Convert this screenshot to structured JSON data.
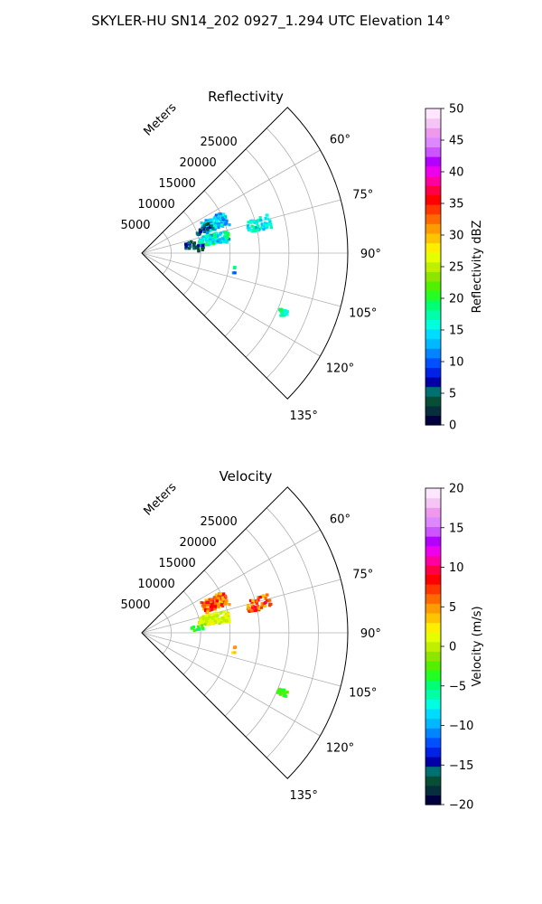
{
  "figure": {
    "title": "SKYLER-HU  SN14_202  0927_1.294 UTC Elevation 14°"
  },
  "chart_data": [
    {
      "type": "polar-sector",
      "title": "Reflectivity",
      "range_label": "Meters",
      "range_ticks": [
        5000,
        10000,
        15000,
        20000,
        25000
      ],
      "range_max": 35000,
      "azimuth_ticks": [
        "60°",
        "75°",
        "90°",
        "105°",
        "120°",
        "135°"
      ],
      "azimuth_tick_values": [
        60,
        75,
        90,
        105,
        120,
        135
      ],
      "azimuth_range": [
        45,
        135
      ],
      "grid": true,
      "colorbar": {
        "label": "Reflectivity dBZ",
        "min": 0,
        "max": 50,
        "ticks": [
          "0",
          "5",
          "10",
          "15",
          "20",
          "25",
          "30",
          "35",
          "40",
          "45",
          "50"
        ],
        "colors": [
          "#00003c",
          "#062e3c",
          "#064e34",
          "#007070",
          "#0000a6",
          "#0022e6",
          "#0050ff",
          "#0084ff",
          "#00b8ff",
          "#00dcff",
          "#00ffe0",
          "#00ffa8",
          "#00ff72",
          "#22ff22",
          "#52ef00",
          "#8ee600",
          "#bff000",
          "#e6ff00",
          "#ffee00",
          "#ffc400",
          "#ff9a00",
          "#ff6a00",
          "#ff3600",
          "#ff0000",
          "#ff0046",
          "#ff00a0",
          "#ee00ee",
          "#b400ff",
          "#cc55ff",
          "#dd88ff",
          "#ee99ee",
          "#f5c6f5",
          "#ffe6ff"
        ]
      },
      "echoes": [
        {
          "azimuth": 68,
          "range": 13500,
          "az_spread": 5,
          "r_spread": 2200,
          "value_range": [
            10,
            18
          ],
          "count": 110
        },
        {
          "azimuth": 69,
          "range": 11500,
          "az_spread": 3,
          "r_spread": 1500,
          "value_range": [
            3,
            8
          ],
          "count": 25
        },
        {
          "azimuth": 76,
          "range": 20500,
          "az_spread": 3,
          "r_spread": 2000,
          "value_range": [
            12,
            19
          ],
          "count": 60
        },
        {
          "azimuth": 79,
          "range": 12500,
          "az_spread": 4,
          "r_spread": 2600,
          "value_range": [
            11,
            20
          ],
          "count": 110
        },
        {
          "azimuth": 81,
          "range": 8500,
          "az_spread": 4,
          "r_spread": 1000,
          "value_range": [
            3,
            9
          ],
          "count": 25
        },
        {
          "azimuth": 85,
          "range": 9800,
          "az_spread": 3,
          "r_spread": 900,
          "value_range": [
            3,
            8
          ],
          "count": 10
        },
        {
          "azimuth": 99,
          "range": 16000,
          "az_spread": 0.4,
          "r_spread": 200,
          "value_range": [
            18,
            20
          ],
          "count": 3
        },
        {
          "azimuth": 102,
          "range": 16000,
          "az_spread": 0.4,
          "r_spread": 200,
          "value_range": [
            10,
            12
          ],
          "count": 2
        },
        {
          "azimuth": 113,
          "range": 26000,
          "az_spread": 1.2,
          "r_spread": 800,
          "value_range": [
            15,
            20
          ],
          "count": 24
        }
      ]
    },
    {
      "type": "polar-sector",
      "title": "Velocity",
      "range_label": "Meters",
      "range_ticks": [
        5000,
        10000,
        15000,
        20000,
        25000
      ],
      "range_max": 35000,
      "azimuth_ticks": [
        "60°",
        "75°",
        "90°",
        "105°",
        "120°",
        "135°"
      ],
      "azimuth_tick_values": [
        60,
        75,
        90,
        105,
        120,
        135
      ],
      "azimuth_range": [
        45,
        135
      ],
      "grid": true,
      "colorbar": {
        "label": "Velocity (m/s)",
        "min": -20,
        "max": 20,
        "ticks": [
          "−20",
          "−15",
          "−10",
          "−5",
          "0",
          "5",
          "10",
          "15",
          "20"
        ],
        "colors": [
          "#00003c",
          "#062e3c",
          "#064e34",
          "#007070",
          "#0000a6",
          "#0022e6",
          "#0050ff",
          "#0084ff",
          "#00b8ff",
          "#00dcff",
          "#00ffe0",
          "#00ffa8",
          "#00ff72",
          "#22ff22",
          "#52ef00",
          "#8ee600",
          "#bff000",
          "#e6ff00",
          "#ffee00",
          "#ffc400",
          "#ff9a00",
          "#ff6a00",
          "#ff3600",
          "#ff0000",
          "#ff0046",
          "#ff00a0",
          "#ee00ee",
          "#b400ff",
          "#cc55ff",
          "#dd88ff",
          "#ee99ee",
          "#f5c6f5",
          "#ffe6ff"
        ]
      },
      "echoes": [
        {
          "azimuth": 68,
          "range": 13500,
          "az_spread": 5,
          "r_spread": 2200,
          "value_range": [
            3,
            10
          ],
          "count": 110
        },
        {
          "azimuth": 76,
          "range": 20500,
          "az_spread": 3,
          "r_spread": 2000,
          "value_range": [
            3,
            10
          ],
          "count": 60
        },
        {
          "azimuth": 79,
          "range": 12500,
          "az_spread": 4,
          "r_spread": 2600,
          "value_range": [
            -1,
            2
          ],
          "count": 110
        },
        {
          "azimuth": 85,
          "range": 9500,
          "az_spread": 3,
          "r_spread": 1000,
          "value_range": [
            -5,
            -2
          ],
          "count": 12
        },
        {
          "azimuth": 99,
          "range": 16000,
          "az_spread": 0.4,
          "r_spread": 200,
          "value_range": [
            4,
            6
          ],
          "count": 3
        },
        {
          "azimuth": 102,
          "range": 16000,
          "az_spread": 0.4,
          "r_spread": 200,
          "value_range": [
            2,
            4
          ],
          "count": 2
        },
        {
          "azimuth": 113,
          "range": 26000,
          "az_spread": 1.2,
          "r_spread": 800,
          "value_range": [
            -4,
            -2
          ],
          "count": 24
        }
      ]
    }
  ]
}
